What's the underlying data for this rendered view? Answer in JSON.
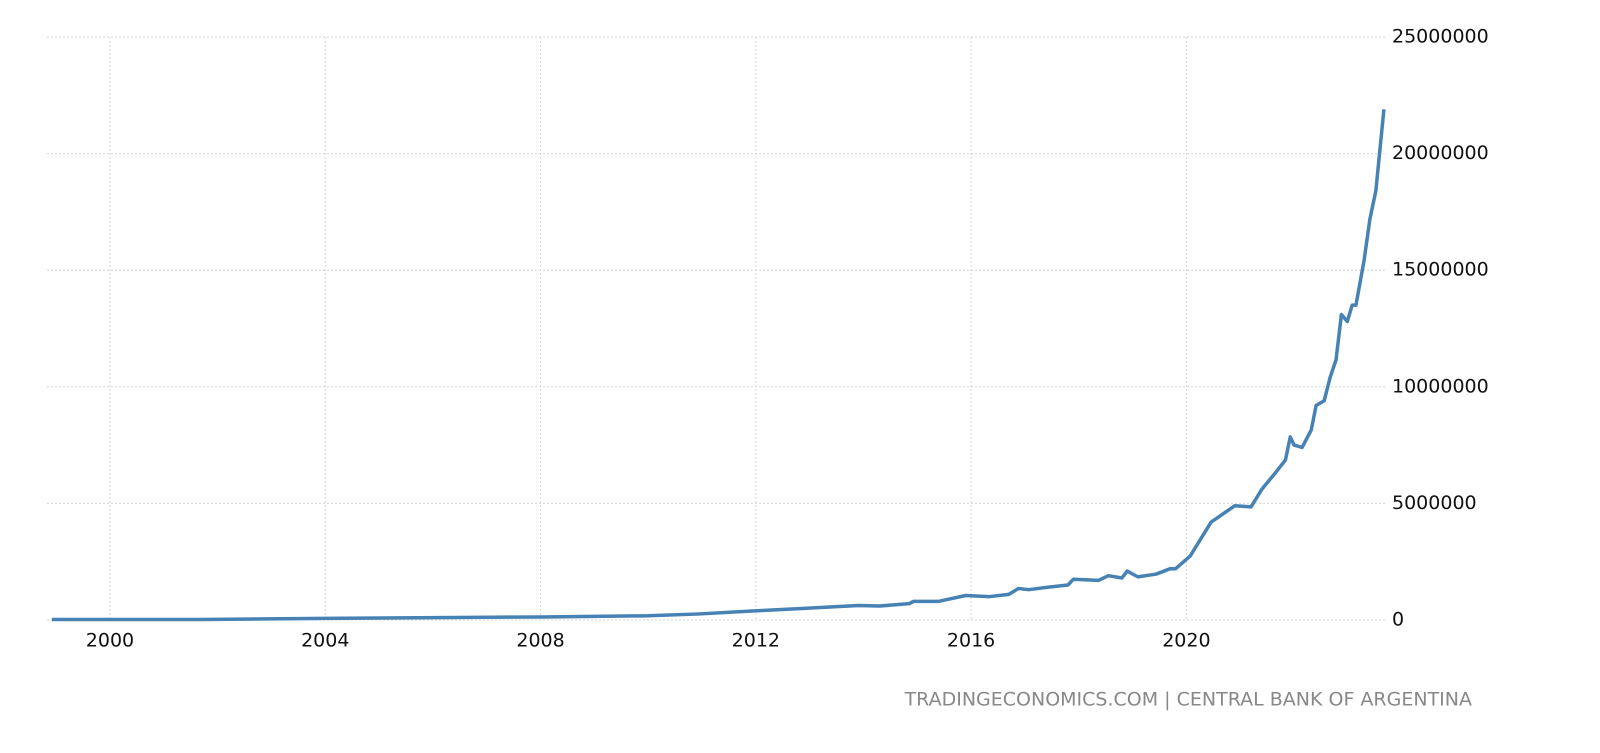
{
  "chart_data": {
    "type": "line",
    "source": "TRADINGECONOMICS.COM | CENTRAL BANK OF ARGENTINA",
    "x": [
      1998.92,
      2001.7,
      2004.0,
      2008.0,
      2010.0,
      2010.95,
      2011.97,
      2012.9,
      2013.9,
      2014.3,
      2014.85,
      2014.93,
      2015.4,
      2015.9,
      2016.33,
      2016.7,
      2016.88,
      2017.07,
      2017.4,
      2017.8,
      2017.9,
      2018.37,
      2018.55,
      2018.8,
      2018.9,
      2019.1,
      2019.44,
      2019.7,
      2019.8,
      2020.07,
      2020.46,
      2020.9,
      2021.2,
      2021.4,
      2021.65,
      2021.84,
      2021.93,
      2022.0,
      2022.15,
      2022.32,
      2022.41,
      2022.56,
      2022.67,
      2022.78,
      2022.88,
      2022.99,
      2023.08,
      2023.15,
      2023.3,
      2023.41,
      2023.52,
      2023.67
    ],
    "series": [
      {
        "color": "#4682b4",
        "values": [
          20000,
          20000,
          70000,
          130000,
          180000,
          260000,
          390000,
          500000,
          620000,
          600000,
          700000,
          800000,
          800000,
          1050000,
          1000000,
          1100000,
          1350000,
          1300000,
          1400000,
          1500000,
          1750000,
          1700000,
          1900000,
          1800000,
          2100000,
          1850000,
          1970000,
          2200000,
          2200000,
          2740000,
          4200000,
          4900000,
          4850000,
          5600000,
          6300000,
          6860000,
          7850000,
          7500000,
          7400000,
          8150000,
          9200000,
          9400000,
          10400000,
          11150000,
          13100000,
          12800000,
          13500000,
          13500000,
          15400000,
          17200000,
          18400000,
          21900000
        ]
      }
    ],
    "xlim": [
      1998.83,
      2023.69
    ],
    "xticks": [
      2000,
      2004,
      2008,
      2012,
      2016,
      2020
    ],
    "ylim": [
      0,
      25000000
    ],
    "yticks": [
      0,
      5000000,
      10000000,
      15000000,
      20000000,
      25000000
    ],
    "grid": true
  }
}
